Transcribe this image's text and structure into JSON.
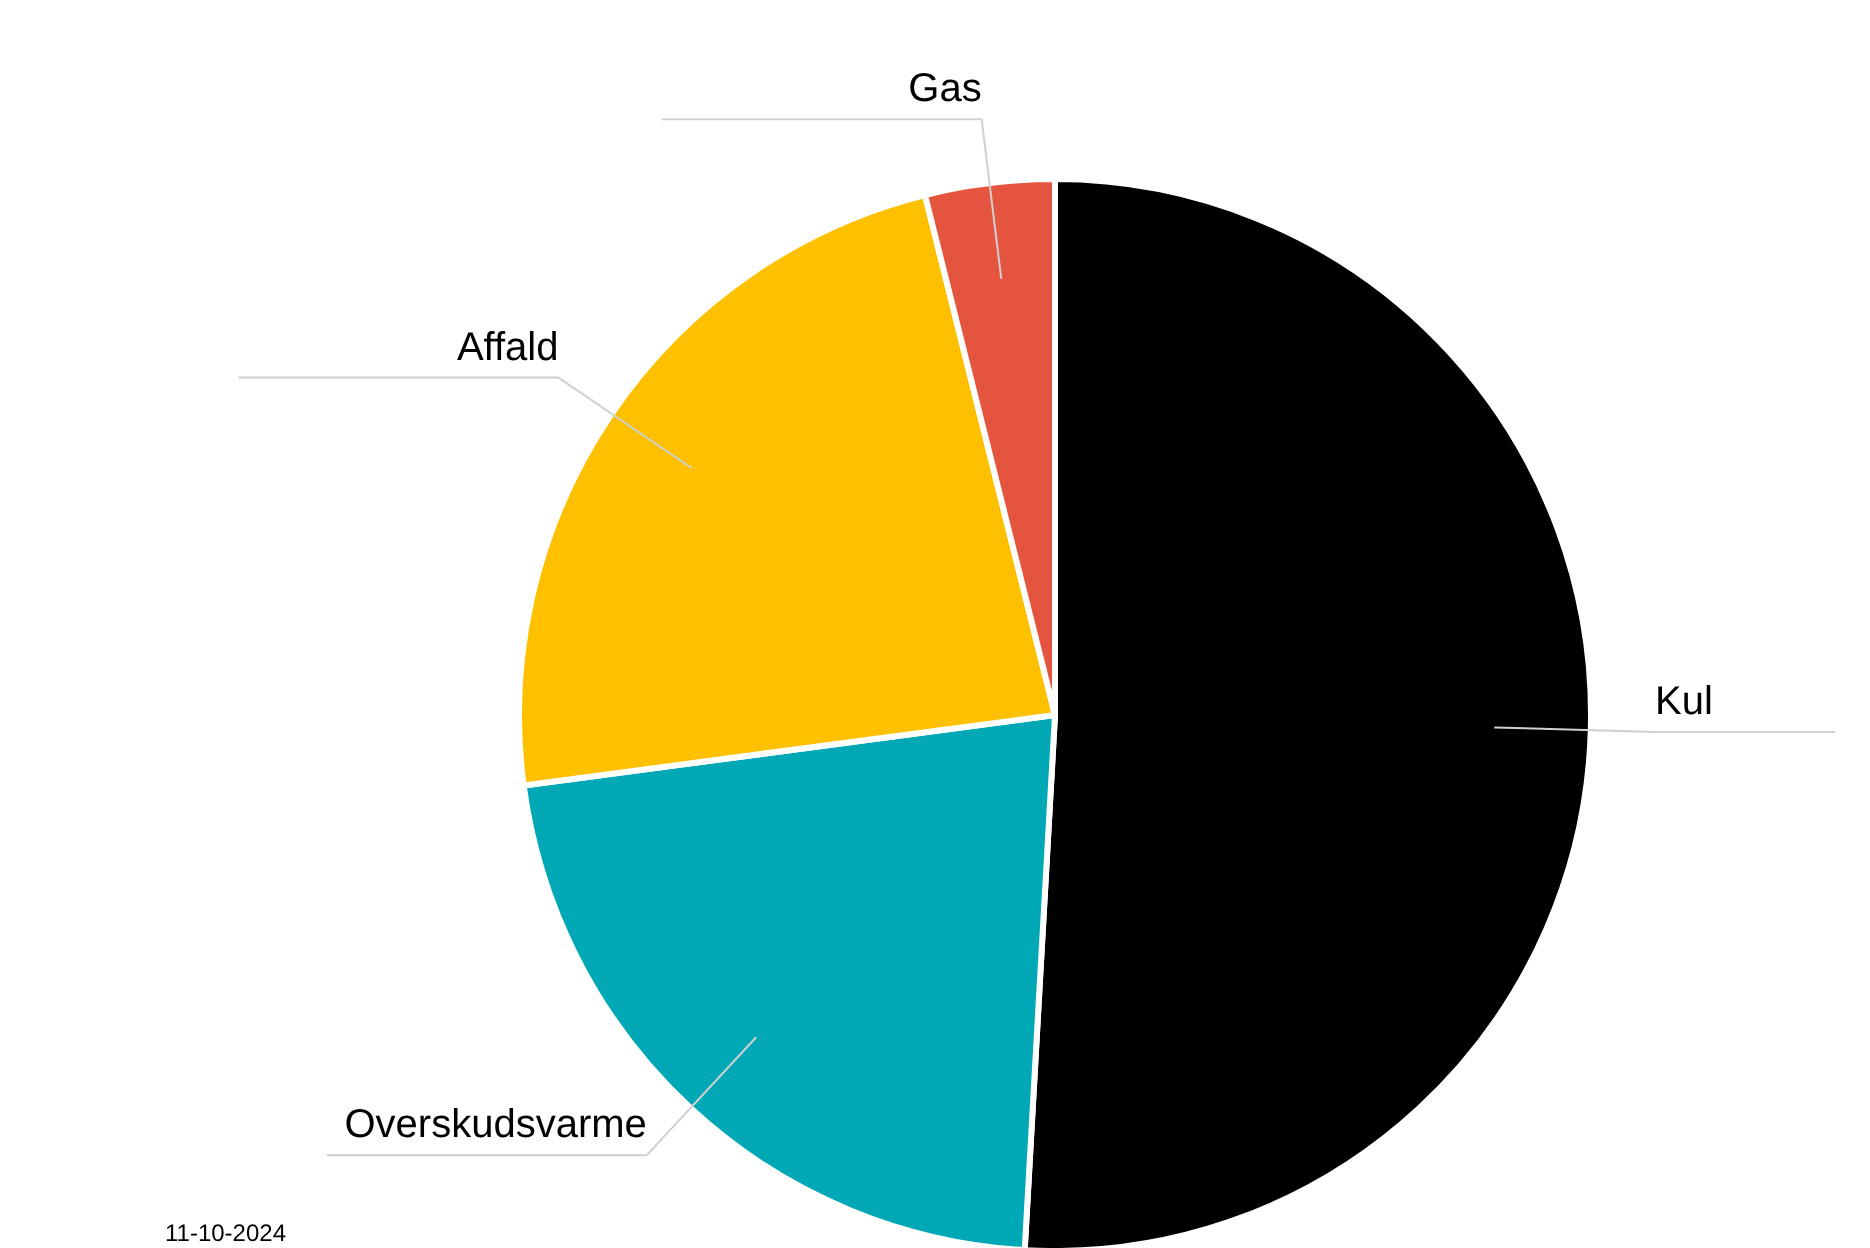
{
  "chart_data": {
    "type": "pie",
    "categories": [
      "Kul",
      "Overskudsvarme",
      "Affald",
      "Gas"
    ],
    "values": [
      50.9,
      22.0,
      23.2,
      3.9
    ],
    "colors": [
      "#000000",
      "#00a8b5",
      "#ffc000",
      "#e4543e"
    ],
    "annotations": [
      "11-10-2024"
    ]
  }
}
